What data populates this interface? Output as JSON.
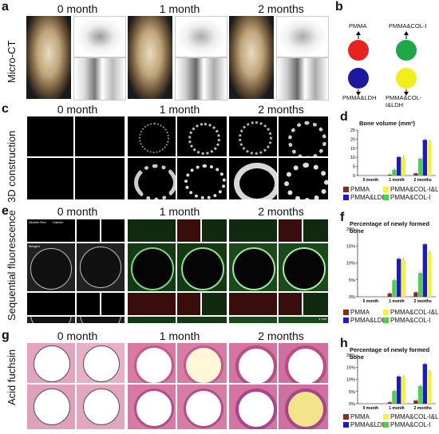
{
  "figure": {
    "panel_labels": {
      "a": "a",
      "b": "b",
      "c": "c",
      "d": "d",
      "e": "e",
      "f": "f",
      "g": "g",
      "h": "h"
    },
    "row_labels": {
      "a": "Micro-CT",
      "c": "3D construction",
      "e": "Sequential fluorescence",
      "g": "Acid fuchsin"
    },
    "column_headers": [
      "0 month",
      "1 month",
      "2 months"
    ],
    "fluor_labels": {
      "alizarin": "Alizarin Red",
      "calcein": "Calcein",
      "merged": "Merged",
      "scale": "1 mm"
    }
  },
  "scheme": {
    "circles": [
      {
        "label": "PMMA",
        "color": "#e8231f"
      },
      {
        "label": "PMMA&COL-I",
        "color": "#1fa84a"
      },
      {
        "label": "PMMA&LDH",
        "color": "#1a1aa0"
      },
      {
        "label": "PMMA&COL-I&LDH",
        "color": "#f2ee1a"
      }
    ]
  },
  "legend": {
    "items": [
      {
        "label": "PMMA",
        "color": "#8b2a1e"
      },
      {
        "label": "PMMA&COL-I&LDH",
        "color": "#f5f23a"
      },
      {
        "label": "PMMA&LDH",
        "color": "#1a1acc"
      },
      {
        "label": "PMMA&COL-I",
        "color": "#4ccf4c"
      }
    ]
  },
  "chart_data": [
    {
      "type": "bar",
      "title": "Bone volume (mm³)",
      "categories": [
        "0 month",
        "1 month",
        "2 months"
      ],
      "ylim": [
        0,
        25
      ],
      "yticks": [
        0,
        5,
        10,
        15,
        20,
        25
      ],
      "series": [
        {
          "name": "PMMA",
          "values": [
            0,
            0.4,
            1.2
          ]
        },
        {
          "name": "PMMA&COL-I",
          "values": [
            0,
            3.2,
            9.2
          ]
        },
        {
          "name": "PMMA&LDH",
          "values": [
            0,
            10.2,
            19.6
          ]
        },
        {
          "name": "PMMA&COL-I&LDH",
          "values": [
            0,
            9.9,
            18.6
          ]
        }
      ]
    },
    {
      "type": "bar",
      "title": "Percentage of newly formed bone",
      "categories": [
        "0 month",
        "1 month",
        "2 months"
      ],
      "ylim": [
        0,
        20
      ],
      "yticks": [
        "0%",
        "5%",
        "10%",
        "15%",
        "20%"
      ],
      "series": [
        {
          "name": "PMMA",
          "values": [
            0,
            1.0,
            1.3
          ]
        },
        {
          "name": "PMMA&COL-I",
          "values": [
            0,
            4.9,
            7.0
          ]
        },
        {
          "name": "PMMA&LDH",
          "values": [
            0,
            11.2,
            15.5
          ]
        },
        {
          "name": "PMMA&COL-I&LDH",
          "values": [
            0,
            11.0,
            13.0
          ]
        }
      ]
    },
    {
      "type": "bar",
      "title": "Percentage of newly formed bone",
      "categories": [
        "0 month",
        "1 month",
        "2 months"
      ],
      "ylim": [
        0,
        20
      ],
      "yticks": [
        "0%",
        "5%",
        "10%",
        "15%",
        "20%"
      ],
      "series": [
        {
          "name": "PMMA",
          "values": [
            0,
            0.6,
            1.3
          ]
        },
        {
          "name": "PMMA&COL-I",
          "values": [
            0,
            5.2,
            7.2
          ]
        },
        {
          "name": "PMMA&LDH",
          "values": [
            0,
            11.2,
            16.3
          ]
        },
        {
          "name": "PMMA&COL-I&LDH",
          "values": [
            0,
            11.0,
            13.2
          ]
        }
      ]
    }
  ]
}
